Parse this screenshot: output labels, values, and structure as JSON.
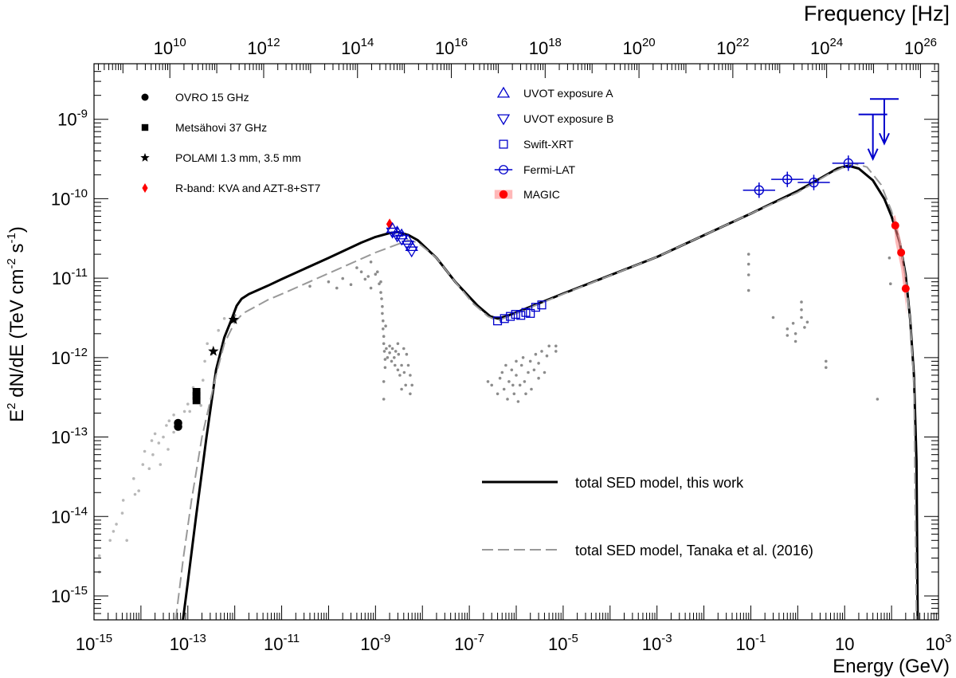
{
  "chart_data": {
    "type": "scatter",
    "x_scale": "log",
    "y_scale": "log",
    "xlabel": "Energy (GeV)",
    "ylabel_parts": [
      "E",
      "2",
      " dN/dE (TeV cm",
      "-2",
      " s",
      "-1",
      ")"
    ],
    "top_axis_label": "Frequency [Hz]",
    "xlim": [
      1e-15,
      1000
    ],
    "ylim": [
      5e-16,
      5e-09
    ],
    "x_ticks": [
      {
        "base": "10",
        "exp": "-15"
      },
      {
        "base": "10",
        "exp": "-13"
      },
      {
        "base": "10",
        "exp": "-11"
      },
      {
        "base": "10",
        "exp": "-9"
      },
      {
        "base": "10",
        "exp": "-7"
      },
      {
        "base": "10",
        "exp": "-5"
      },
      {
        "base": "10",
        "exp": "-3"
      },
      {
        "base": "10",
        "exp": "-1"
      },
      {
        "base": "10",
        "exp": ""
      },
      {
        "base": "10",
        "exp": "3"
      }
    ],
    "x_tick_values": [
      1e-15,
      1e-13,
      1e-11,
      1e-09,
      1e-07,
      1e-05,
      0.001,
      0.1,
      10,
      1000
    ],
    "y_ticks": [
      {
        "base": "10",
        "exp": "-15",
        "value": 1e-15
      },
      {
        "base": "10",
        "exp": "-14",
        "value": 1e-14
      },
      {
        "base": "10",
        "exp": "-13",
        "value": 1e-13
      },
      {
        "base": "10",
        "exp": "-12",
        "value": 1e-12
      },
      {
        "base": "10",
        "exp": "-11",
        "value": 1e-11
      },
      {
        "base": "10",
        "exp": "-10",
        "value": 1e-10
      },
      {
        "base": "10",
        "exp": "-9",
        "value": 1e-09
      }
    ],
    "top_ticks": [
      {
        "base": "10",
        "exp": "10",
        "hz": 10000000000.0
      },
      {
        "base": "10",
        "exp": "12",
        "hz": 1000000000000.0
      },
      {
        "base": "10",
        "exp": "14",
        "hz": 100000000000000.0
      },
      {
        "base": "10",
        "exp": "16",
        "hz": 1e+16
      },
      {
        "base": "10",
        "exp": "18",
        "hz": 1e+18
      },
      {
        "base": "10",
        "exp": "20",
        "hz": 1e+20
      },
      {
        "base": "10",
        "exp": "22",
        "hz": 1e+22
      },
      {
        "base": "10",
        "exp": "24",
        "hz": 1e+24
      },
      {
        "base": "10",
        "exp": "26",
        "hz": 1e+26
      }
    ],
    "hz_per_gev": 2.418e+23,
    "legend_left": [
      {
        "label": "OVRO 15 GHz",
        "marker": "circle",
        "color": "#000000"
      },
      {
        "label": "Metsähovi 37 GHz",
        "marker": "square",
        "color": "#000000"
      },
      {
        "label": "POLAMI 1.3 mm, 3.5 mm",
        "marker": "star",
        "color": "#000000"
      },
      {
        "label": "R-band: KVA and AZT-8+ST7",
        "marker": "diamond",
        "color": "#ff0000"
      }
    ],
    "legend_right": [
      {
        "label": "UVOT exposure A",
        "marker": "triangle-up",
        "color": "#0000cc"
      },
      {
        "label": "UVOT exposure B",
        "marker": "triangle-down",
        "color": "#0000cc"
      },
      {
        "label": "Swift-XRT",
        "marker": "open-square",
        "color": "#0000cc"
      },
      {
        "label": "Fermi-LAT",
        "marker": "open-circle-bar",
        "color": "#0000cc"
      },
      {
        "label": "MAGIC",
        "marker": "filled-circle-band",
        "color": "#ff0000"
      }
    ],
    "legend_models": [
      {
        "label": "total SED model, this work",
        "style": "solid",
        "color": "#000000"
      },
      {
        "label": "total SED model, Tanaka et al. (2016)",
        "style": "dashed",
        "color": "#999999"
      }
    ],
    "series": [
      {
        "name": "OVRO 15 GHz",
        "marker": "circle",
        "color": "#000000",
        "points": [
          [
            6.2e-14,
            1.35e-13
          ],
          [
            6.2e-14,
            1.5e-13
          ]
        ]
      },
      {
        "name": "Metsähovi 37 GHz",
        "marker": "square",
        "color": "#000000",
        "points": [
          [
            1.53e-13,
            2.9e-13
          ],
          [
            1.53e-13,
            3.3e-13
          ],
          [
            1.53e-13,
            3.7e-13
          ]
        ]
      },
      {
        "name": "POLAMI 1.3 mm, 3.5 mm",
        "marker": "star",
        "color": "#000000",
        "points": [
          [
            3.5e-13,
            1.2e-12
          ],
          [
            9.5e-13,
            3e-12
          ]
        ]
      },
      {
        "name": "R-band: KVA and AZT-8+ST7",
        "marker": "diamond",
        "color": "#ff0000",
        "points": [
          [
            2e-09,
            4.8e-11
          ]
        ]
      },
      {
        "name": "UVOT exposure A",
        "marker": "triangle-up",
        "color": "#0000cc",
        "points": [
          [
            2.3e-09,
            4.2e-11
          ],
          [
            2.9e-09,
            3.8e-11
          ],
          [
            3.6e-09,
            3.5e-11
          ],
          [
            4.9e-09,
            3e-11
          ],
          [
            5.9e-09,
            2.5e-11
          ]
        ]
      },
      {
        "name": "UVOT exposure B",
        "marker": "triangle-down",
        "color": "#0000cc",
        "points": [
          [
            2.3e-09,
            3.8e-11
          ],
          [
            2.9e-09,
            3.4e-11
          ],
          [
            3.6e-09,
            3.1e-11
          ],
          [
            4.9e-09,
            2.6e-11
          ],
          [
            5.9e-09,
            2.2e-11
          ]
        ]
      },
      {
        "name": "Swift-XRT",
        "marker": "open-square",
        "color": "#0000cc",
        "points": [
          [
            4e-07,
            2.9e-12
          ],
          [
            5.6e-07,
            3.1e-12
          ],
          [
            7.5e-07,
            3.3e-12
          ],
          [
            9.7e-07,
            3.5e-12
          ],
          [
            1.25e-06,
            3.4e-12
          ],
          [
            1.6e-06,
            3.7e-12
          ],
          [
            2e-06,
            3.6e-12
          ],
          [
            2.6e-06,
            4.3e-12
          ],
          [
            3.5e-06,
            4.6e-12
          ]
        ]
      },
      {
        "name": "Fermi-LAT",
        "marker": "open-circle-bar",
        "color": "#0000cc",
        "points": [
          [
            0.15,
            1.28e-10
          ],
          [
            0.6,
            1.75e-10
          ],
          [
            2.2,
            1.6e-10
          ],
          [
            12.0,
            2.8e-10
          ]
        ]
      },
      {
        "name": "MAGIC",
        "marker": "filled-circle-band",
        "color": "#ff0000",
        "points": [
          [
            120,
            4.6e-11
          ],
          [
            160,
            2.1e-11
          ],
          [
            200,
            7.4e-12
          ]
        ]
      }
    ],
    "upper_limits": [
      [
        40,
        1.15e-09
      ],
      [
        70,
        1.8e-09
      ]
    ],
    "models": [
      {
        "name": "total SED model, this work",
        "style": "solid",
        "color": "#000000",
        "points": [
          [
            7.9e-14,
            5e-16
          ],
          [
            1e-13,
            1.5e-15
          ],
          [
            1.5e-13,
            1e-14
          ],
          [
            2.5e-13,
            1e-13
          ],
          [
            4e-13,
            7e-13
          ],
          [
            6e-13,
            1.8e-12
          ],
          [
            8.5e-13,
            3e-12
          ],
          [
            1.1e-12,
            4.5e-12
          ],
          [
            1.4e-12,
            5.5e-12
          ],
          [
            2e-12,
            6.3e-12
          ],
          [
            5e-12,
            8e-12
          ],
          [
            1e-11,
            9.7e-12
          ],
          [
            1e-10,
            1.8e-11
          ],
          [
            5e-10,
            2.8e-11
          ],
          [
            1e-09,
            3.3e-11
          ],
          [
            2e-09,
            3.7e-11
          ],
          [
            3e-09,
            3.8e-11
          ],
          [
            5e-09,
            3.5e-11
          ],
          [
            8e-09,
            3e-11
          ],
          [
            2e-08,
            1.8e-11
          ],
          [
            5e-08,
            9e-12
          ],
          [
            1.5e-07,
            4.5e-12
          ],
          [
            2.8e-07,
            3.3e-12
          ],
          [
            4e-07,
            3.1e-12
          ],
          [
            6e-07,
            3.3e-12
          ],
          [
            1e-06,
            3.7e-12
          ],
          [
            1e-05,
            6.4e-12
          ],
          [
            0.001,
            1.85e-11
          ],
          [
            0.1,
            6.5e-11
          ],
          [
            1,
            1.25e-10
          ],
          [
            3,
            1.8e-10
          ],
          [
            7,
            2.4e-10
          ],
          [
            12,
            2.6e-10
          ],
          [
            20,
            2.4e-10
          ],
          [
            40,
            1.7e-10
          ],
          [
            70,
            1e-10
          ],
          [
            100,
            6e-11
          ],
          [
            150,
            2.8e-11
          ],
          [
            200,
            1.1e-11
          ],
          [
            250,
            3e-12
          ],
          [
            300,
            6e-13
          ],
          [
            340,
            5e-14
          ],
          [
            360,
            5e-16
          ]
        ]
      },
      {
        "name": "total SED model, Tanaka et al. (2016)",
        "style": "dashed",
        "color": "#999999",
        "points": [
          [
            5.5e-14,
            5e-16
          ],
          [
            8e-14,
            3e-15
          ],
          [
            1.2e-13,
            1.6e-14
          ],
          [
            2e-13,
            1e-13
          ],
          [
            4e-13,
            6e-13
          ],
          [
            6e-13,
            1.5e-12
          ],
          [
            1e-12,
            2.8e-12
          ],
          [
            1.5e-12,
            3.6e-12
          ],
          [
            5e-12,
            5.3e-12
          ],
          [
            1e-11,
            6.3e-12
          ],
          [
            1e-10,
            1.15e-11
          ],
          [
            1e-09,
            2.1e-11
          ],
          [
            5e-09,
            3e-11
          ],
          [
            8e-09,
            2.8e-11
          ],
          [
            2e-08,
            1.8e-11
          ],
          [
            5e-08,
            9e-12
          ],
          [
            1.2e-07,
            4.8e-12
          ],
          [
            2.5e-07,
            3.3e-12
          ],
          [
            4e-07,
            2.9e-12
          ],
          [
            6e-07,
            3.2e-12
          ],
          [
            1e-06,
            3.6e-12
          ],
          [
            1e-05,
            6.3e-12
          ],
          [
            0.001,
            1.85e-11
          ],
          [
            0.1,
            6.5e-11
          ],
          [
            1,
            1.2e-10
          ],
          [
            5,
            2.1e-10
          ],
          [
            15,
            2.8e-10
          ],
          [
            30,
            2.5e-10
          ],
          [
            60,
            1.5e-10
          ],
          [
            100,
            7e-11
          ],
          [
            150,
            3e-11
          ],
          [
            200,
            1e-11
          ],
          [
            250,
            3e-12
          ],
          [
            300,
            5e-13
          ],
          [
            340,
            5e-16
          ]
        ]
      }
    ],
    "archival": [
      [
        1.3e-15,
        2e-15
      ],
      [
        1.3e-15,
        3.2e-15
      ],
      [
        2.2e-15,
        5e-15
      ],
      [
        2.6e-15,
        6.5e-15
      ],
      [
        3e-15,
        8e-15
      ],
      [
        4e-15,
        1.1e-14
      ],
      [
        4.2e-15,
        1.6e-14
      ],
      [
        5e-15,
        5e-15
      ],
      [
        7e-15,
        3e-14
      ],
      [
        7.5e-15,
        1.9e-14
      ],
      [
        9e-15,
        2.1e-14
      ],
      [
        1.1e-14,
        4.5e-14
      ],
      [
        1.2e-14,
        6.6e-14
      ],
      [
        1.5e-14,
        4e-14
      ],
      [
        1.7e-14,
        9e-14
      ],
      [
        1.8e-14,
        6e-14
      ],
      [
        2e-14,
        1.1e-13
      ],
      [
        2.4e-14,
        8.4e-14
      ],
      [
        2.6e-14,
        4.5e-14
      ],
      [
        3e-14,
        1e-13
      ],
      [
        3.5e-14,
        1.4e-13
      ],
      [
        3.8e-14,
        7e-14
      ],
      [
        4e-14,
        1.6e-13
      ],
      [
        5e-14,
        1.9e-13
      ],
      [
        5e-14,
        1.15e-13
      ],
      [
        8.5e-14,
        2.1e-13
      ],
      [
        1e-13,
        2.6e-13
      ],
      [
        1.1e-13,
        2.1e-13
      ],
      [
        1.3e-13,
        4.2e-13
      ],
      [
        1.9e-13,
        2.5e-13
      ],
      [
        2.1e-13,
        5.2e-13
      ],
      [
        2.3e-13,
        9e-13
      ],
      [
        2.6e-13,
        1.5e-12
      ],
      [
        3.2e-13,
        1.1e-12
      ],
      [
        4.5e-13,
        2.2e-12
      ],
      [
        6e-13,
        3.1e-12
      ],
      [
        1e-12,
        3.4e-12
      ],
      [
        4e-11,
        7.9e-12
      ],
      [
        1e-10,
        9e-12
      ],
      [
        1.5e-10,
        7.5e-12
      ],
      [
        2e-10,
        9.9e-12
      ],
      [
        3e-10,
        8.3e-12
      ],
      [
        4e-10,
        1.35e-11
      ],
      [
        5e-10,
        1.2e-11
      ],
      [
        6e-10,
        9.7e-12
      ],
      [
        7e-10,
        1.05e-11
      ],
      [
        8e-10,
        7.5e-12
      ],
      [
        8e-10,
        1.6e-11
      ],
      [
        1e-09,
        1.12e-11
      ],
      [
        1.1e-09,
        1.2e-11
      ],
      [
        1.2e-09,
        8.5e-12
      ],
      [
        1.3e-09,
        6.6e-12
      ],
      [
        1.3e-09,
        9e-12
      ],
      [
        1.35e-09,
        5.5e-12
      ],
      [
        1.4e-09,
        4.4e-12
      ],
      [
        1.4e-09,
        3.6e-12
      ],
      [
        1.45e-09,
        2.9e-12
      ],
      [
        1.45e-09,
        2.3e-12
      ],
      [
        1.5e-09,
        1.85e-12
      ],
      [
        1.5e-09,
        1.5e-12
      ],
      [
        1.55e-09,
        1.2e-12
      ],
      [
        1.6e-09,
        9.5e-13
      ],
      [
        1.6e-09,
        7.5e-13
      ],
      [
        1.5e-09,
        5e-13
      ],
      [
        1.5e-09,
        3e-13
      ],
      [
        1.65e-09,
        2.5e-12
      ],
      [
        1.7e-09,
        1.3e-12
      ],
      [
        1.8e-09,
        1e-12
      ],
      [
        2e-09,
        1.4e-12
      ],
      [
        2e-09,
        1.15e-12
      ],
      [
        2.2e-09,
        9e-13
      ],
      [
        2.3e-09,
        1.3e-12
      ],
      [
        2.5e-09,
        1e-12
      ],
      [
        2.6e-09,
        8e-13
      ],
      [
        2.7e-09,
        1.2e-12
      ],
      [
        3e-09,
        7e-13
      ],
      [
        3e-09,
        1.5e-12
      ],
      [
        3.1e-09,
        1.1e-12
      ],
      [
        3.3e-09,
        6e-13
      ],
      [
        3.6e-09,
        8e-13
      ],
      [
        3.6e-09,
        4e-13
      ],
      [
        4e-09,
        1.3e-12
      ],
      [
        4.1e-09,
        6.5e-13
      ],
      [
        4.4e-09,
        4.5e-13
      ],
      [
        4.6e-09,
        1.1e-12
      ],
      [
        5e-09,
        8e-13
      ],
      [
        5.5e-09,
        3.5e-13
      ],
      [
        5.5e-09,
        6e-13
      ],
      [
        6e-09,
        4.5e-13
      ],
      [
        2.5e-07,
        5e-13
      ],
      [
        3e-07,
        4.5e-13
      ],
      [
        4e-07,
        3.5e-13
      ],
      [
        4.5e-07,
        5.5e-13
      ],
      [
        5e-07,
        6.5e-13
      ],
      [
        5.5e-07,
        4e-13
      ],
      [
        6e-07,
        8e-13
      ],
      [
        6.5e-07,
        3e-13
      ],
      [
        7e-07,
        5e-13
      ],
      [
        8e-07,
        7e-13
      ],
      [
        8.5e-07,
        4.5e-13
      ],
      [
        9e-07,
        3.5e-13
      ],
      [
        1e-06,
        9e-13
      ],
      [
        1e-06,
        6e-13
      ],
      [
        1.1e-06,
        2.8e-13
      ],
      [
        1.2e-06,
        4.5e-13
      ],
      [
        1.3e-06,
        8e-13
      ],
      [
        1.4e-06,
        1e-12
      ],
      [
        1.5e-06,
        5e-13
      ],
      [
        1.6e-06,
        3.5e-13
      ],
      [
        1.8e-06,
        6.5e-13
      ],
      [
        2e-06,
        9e-13
      ],
      [
        2.1e-06,
        4e-13
      ],
      [
        2.4e-06,
        7e-13
      ],
      [
        2.6e-06,
        1.1e-12
      ],
      [
        3e-06,
        5.5e-13
      ],
      [
        3e-06,
        8.5e-13
      ],
      [
        3.5e-06,
        1.2e-12
      ],
      [
        4e-06,
        6.5e-13
      ],
      [
        4.5e-06,
        1.05e-12
      ],
      [
        5e-06,
        1.4e-12
      ],
      [
        7e-06,
        1.2e-12
      ],
      [
        7e-06,
        1.4e-12
      ],
      [
        0.09,
        2e-11
      ],
      [
        0.09,
        1.5e-11
      ],
      [
        0.09,
        1.1e-11
      ],
      [
        0.09,
        7e-12
      ],
      [
        0.3,
        3.2e-12
      ],
      [
        0.6,
        2.3e-12
      ],
      [
        0.6,
        1.9e-12
      ],
      [
        0.8,
        2.7e-12
      ],
      [
        0.9,
        2e-12
      ],
      [
        0.9,
        1.6e-12
      ],
      [
        1.2,
        5e-12
      ],
      [
        1.2,
        4e-12
      ],
      [
        1.2,
        3.2e-12
      ],
      [
        1.4,
        2.4e-12
      ],
      [
        1.6,
        2.8e-12
      ],
      [
        4.0,
        9e-13
      ],
      [
        4.0,
        7.5e-13
      ],
      [
        50,
        3e-13
      ],
      [
        90,
        1.8e-11
      ],
      [
        95,
        8.5e-12
      ]
    ]
  }
}
